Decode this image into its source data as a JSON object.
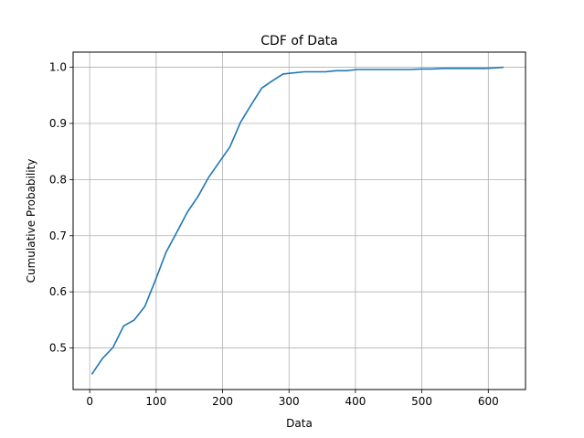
{
  "chart_data": {
    "type": "line",
    "title": "CDF of Data",
    "xlabel": "Data",
    "ylabel": "Cumulative Probability",
    "xlim": [
      -25,
      656
    ],
    "ylim": [
      0.426,
      1.027
    ],
    "xticks": [
      0,
      100,
      200,
      300,
      400,
      500,
      600
    ],
    "xtick_labels": [
      "0",
      "100",
      "200",
      "300",
      "400",
      "500",
      "600"
    ],
    "yticks": [
      0.5,
      0.6,
      0.7,
      0.8,
      0.9,
      1.0
    ],
    "ytick_labels": [
      "0.5",
      "0.6",
      "0.7",
      "0.8",
      "0.9",
      "1.0"
    ],
    "grid": true,
    "line_color": "#1f77b4",
    "series": [
      {
        "x": [
          3,
          19,
          35,
          51,
          67,
          83,
          99,
          115,
          131,
          147,
          163,
          179,
          195,
          211,
          227,
          243,
          259,
          275,
          291,
          307,
          323,
          339,
          355,
          371,
          387,
          403,
          419,
          435,
          451,
          467,
          483,
          499,
          515,
          531,
          547,
          563,
          579,
          595,
          611,
          623
        ],
        "y": [
          0.453,
          0.481,
          0.501,
          0.539,
          0.55,
          0.574,
          0.621,
          0.671,
          0.706,
          0.742,
          0.77,
          0.804,
          0.831,
          0.858,
          0.902,
          0.933,
          0.963,
          0.976,
          0.988,
          0.99,
          0.992,
          0.992,
          0.992,
          0.994,
          0.994,
          0.996,
          0.996,
          0.996,
          0.996,
          0.996,
          0.996,
          0.997,
          0.997,
          0.998,
          0.998,
          0.998,
          0.998,
          0.998,
          0.999,
          1.0
        ]
      }
    ]
  }
}
